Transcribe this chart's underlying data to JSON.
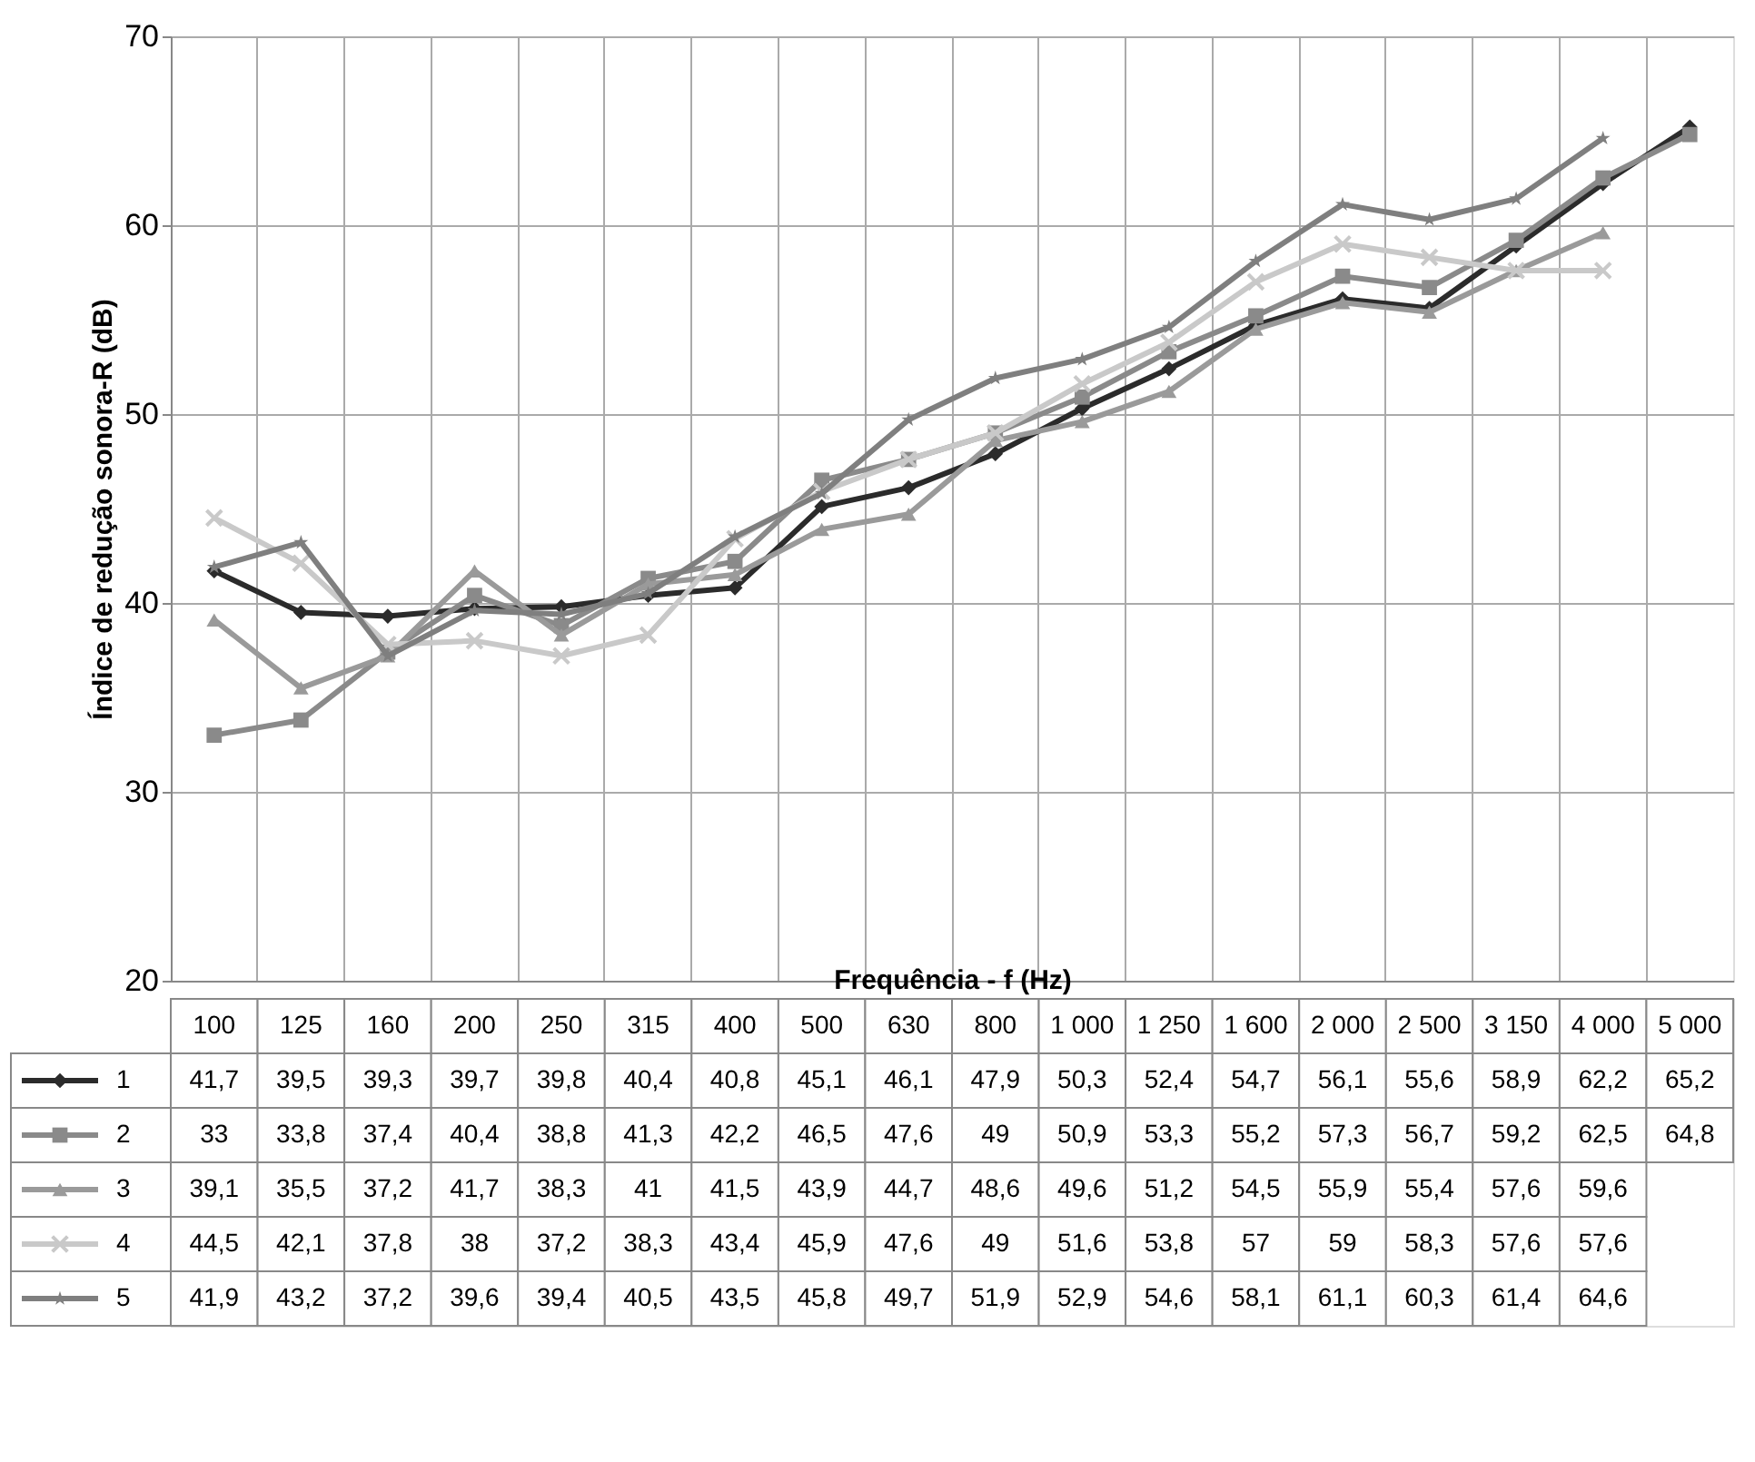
{
  "chart_data": {
    "type": "line",
    "xlabel": "Frequência - f (Hz)",
    "ylabel": "Índice de redução sonora-R (dB)",
    "categories": [
      "100",
      "125",
      "160",
      "200",
      "250",
      "315",
      "400",
      "500",
      "630",
      "800",
      "1 000",
      "1 250",
      "1 600",
      "2 000",
      "2 500",
      "3 150",
      "4 000",
      "5 000"
    ],
    "ylim": [
      20,
      70
    ],
    "yticks": [
      20,
      30,
      40,
      50,
      60,
      70
    ],
    "grid": true,
    "legend": "bottom left",
    "line_style": "solid",
    "series": [
      {
        "name": "1",
        "color": "#2b2b2b",
        "marker": "diamond",
        "values": [
          41.7,
          39.5,
          39.3,
          39.7,
          39.8,
          40.4,
          40.8,
          45.1,
          46.1,
          47.9,
          50.3,
          52.4,
          54.7,
          56.1,
          55.6,
          58.9,
          62.2,
          65.2
        ],
        "value_labels": [
          "41,7",
          "39,5",
          "39,3",
          "39,7",
          "39,8",
          "40,4",
          "40,8",
          "45,1",
          "46,1",
          "47,9",
          "50,3",
          "52,4",
          "54,7",
          "56,1",
          "55,6",
          "58,9",
          "62,2",
          "65,2"
        ]
      },
      {
        "name": "2",
        "color": "#8a8a8a",
        "marker": "square",
        "values": [
          33,
          33.8,
          37.4,
          40.4,
          38.8,
          41.3,
          42.2,
          46.5,
          47.6,
          49,
          50.9,
          53.3,
          55.2,
          57.3,
          56.7,
          59.2,
          62.5,
          64.8
        ],
        "value_labels": [
          "33",
          "33,8",
          "37,4",
          "40,4",
          "38,8",
          "41,3",
          "42,2",
          "46,5",
          "47,6",
          "49",
          "50,9",
          "53,3",
          "55,2",
          "57,3",
          "56,7",
          "59,2",
          "62,5",
          "64,8"
        ]
      },
      {
        "name": "3",
        "color": "#9a9a9a",
        "marker": "triangle",
        "values": [
          39.1,
          35.5,
          37.2,
          41.7,
          38.3,
          41,
          41.5,
          43.9,
          44.7,
          48.6,
          49.6,
          51.2,
          54.5,
          55.9,
          55.4,
          57.6,
          59.6,
          null
        ],
        "value_labels": [
          "39,1",
          "35,5",
          "37,2",
          "41,7",
          "38,3",
          "41",
          "41,5",
          "43,9",
          "44,7",
          "48,6",
          "49,6",
          "51,2",
          "54,5",
          "55,9",
          "55,4",
          "57,6",
          "59,6",
          null
        ]
      },
      {
        "name": "4",
        "color": "#c9c9c9",
        "marker": "cross",
        "values": [
          44.5,
          42.1,
          37.8,
          38,
          37.2,
          38.3,
          43.4,
          45.9,
          47.6,
          49,
          51.6,
          53.8,
          57,
          59,
          58.3,
          57.6,
          57.6,
          null
        ],
        "value_labels": [
          "44,5",
          "42,1",
          "37,8",
          "38",
          "37,2",
          "38,3",
          "43,4",
          "45,9",
          "47,6",
          "49",
          "51,6",
          "53,8",
          "57",
          "59",
          "58,3",
          "57,6",
          "57,6",
          null
        ]
      },
      {
        "name": "5",
        "color": "#7f7f7f",
        "marker": "star",
        "values": [
          41.9,
          43.2,
          37.2,
          39.6,
          39.4,
          40.5,
          43.5,
          45.8,
          49.7,
          51.9,
          52.9,
          54.6,
          58.1,
          61.1,
          60.3,
          61.4,
          64.6,
          null
        ],
        "value_labels": [
          "41,9",
          "43,2",
          "37,2",
          "39,6",
          "39,4",
          "40,5",
          "43,5",
          "45,8",
          "49,7",
          "51,9",
          "52,9",
          "54,6",
          "58,1",
          "61,1",
          "60,3",
          "61,4",
          "64,6",
          null
        ]
      }
    ]
  }
}
